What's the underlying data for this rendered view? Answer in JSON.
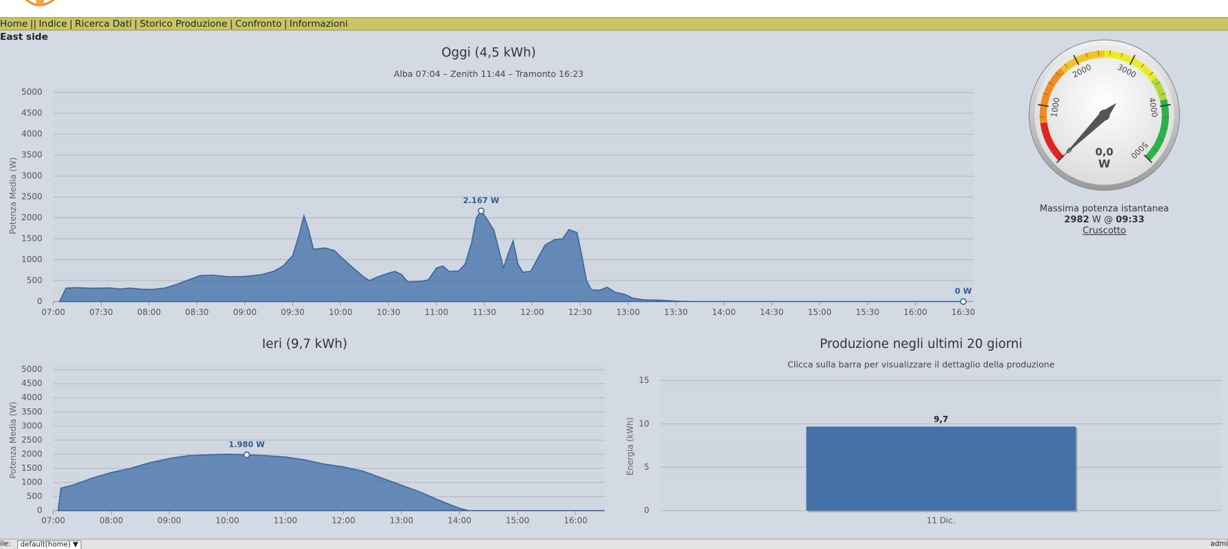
{
  "nav": [
    "Home",
    "Indice",
    "Ricerca Dati",
    "Storico Produzione",
    "Confronto",
    "Informazioni"
  ],
  "section_label": "East side",
  "chart_data": [
    {
      "type": "area",
      "title": "Oggi (4,5 kWh)",
      "subtitle": "Alba 07:04 – Zenith 11:44 – Tramonto 16:23",
      "ylabel": "Potenza Media (W)",
      "color": "#4a76ad",
      "x": [
        "07:04",
        "07:08",
        "07:15",
        "07:25",
        "07:35",
        "07:42",
        "07:48",
        "07:55",
        "08:02",
        "08:10",
        "08:18",
        "08:25",
        "08:32",
        "08:40",
        "08:50",
        "09:00",
        "09:10",
        "09:18",
        "09:24",
        "09:30",
        "09:34",
        "09:37",
        "09:40",
        "09:43",
        "09:50",
        "09:56",
        "10:02",
        "10:08",
        "10:14",
        "10:18",
        "10:24",
        "10:30",
        "10:34",
        "10:38",
        "10:42",
        "10:50",
        "10:55",
        "11:00",
        "11:04",
        "11:08",
        "11:14",
        "11:18",
        "11:22",
        "11:25",
        "11:28",
        "11:32",
        "11:36",
        "11:40",
        "11:42",
        "11:45",
        "11:48",
        "11:51",
        "11:54",
        "11:59",
        "12:03",
        "12:08",
        "12:14",
        "12:19",
        "12:23",
        "12:28",
        "12:31",
        "12:34",
        "12:37",
        "12:42",
        "12:47",
        "12:52",
        "12:58",
        "13:03",
        "13:10",
        "13:20",
        "13:30",
        "13:40",
        "16:30"
      ],
      "values": [
        0,
        320,
        330,
        315,
        325,
        300,
        320,
        295,
        290,
        320,
        420,
        520,
        620,
        630,
        590,
        600,
        640,
        720,
        850,
        1100,
        1600,
        2050,
        1700,
        1250,
        1280,
        1220,
        1000,
        800,
        600,
        500,
        600,
        680,
        720,
        650,
        470,
        480,
        520,
        800,
        850,
        720,
        730,
        900,
        1400,
        2000,
        2167,
        1950,
        1700,
        1100,
        800,
        1150,
        1450,
        900,
        700,
        720,
        1000,
        1350,
        1480,
        1500,
        1720,
        1650,
        1100,
        500,
        280,
        270,
        340,
        220,
        170,
        80,
        40,
        30,
        10,
        0,
        0
      ],
      "xlim": [
        "07:00",
        "16:30"
      ],
      "xticks": [
        "07:00",
        "07:30",
        "08:00",
        "08:30",
        "09:00",
        "09:30",
        "10:00",
        "10:30",
        "11:00",
        "11:30",
        "12:00",
        "12:30",
        "13:00",
        "13:30",
        "14:00",
        "14:30",
        "15:00",
        "15:30",
        "16:00",
        "16:30"
      ],
      "ylim": [
        0,
        5000
      ],
      "yticks": [
        0,
        500,
        1000,
        1500,
        2000,
        2500,
        3000,
        3500,
        4000,
        4500,
        5000
      ],
      "grid": true,
      "annotations": [
        {
          "x": "11:28",
          "value": 2167,
          "label": "2.167 W"
        },
        {
          "x": "16:30",
          "value": 0,
          "label": "0 W"
        }
      ]
    },
    {
      "type": "area",
      "title": "Ieri (9,7 kWh)",
      "ylabel": "Potenza Media (W)",
      "color": "#4a76ad",
      "x": [
        "07:05",
        "07:08",
        "07:20",
        "07:40",
        "08:00",
        "08:20",
        "08:40",
        "09:00",
        "09:20",
        "09:40",
        "10:00",
        "10:20",
        "10:40",
        "11:00",
        "11:20",
        "11:40",
        "12:00",
        "12:20",
        "12:40",
        "13:00",
        "13:20",
        "13:40",
        "14:00",
        "14:10",
        "16:30"
      ],
      "values": [
        0,
        800,
        900,
        1150,
        1350,
        1500,
        1700,
        1850,
        1950,
        1980,
        2000,
        1980,
        1950,
        1900,
        1800,
        1650,
        1550,
        1400,
        1150,
        900,
        650,
        350,
        80,
        0,
        0
      ],
      "xlim": [
        "07:00",
        "16:30"
      ],
      "xticks": [
        "07:00",
        "08:00",
        "09:00",
        "10:00",
        "11:00",
        "12:00",
        "13:00",
        "14:00",
        "15:00",
        "16:00"
      ],
      "ylim": [
        0,
        5000
      ],
      "yticks": [
        0,
        500,
        1000,
        1500,
        2000,
        2500,
        3000,
        3500,
        4000,
        4500,
        5000
      ],
      "grid": true,
      "annotations": [
        {
          "x": "10:20",
          "value": 1980,
          "label": "1.980 W"
        }
      ]
    },
    {
      "type": "bar",
      "title": "Produzione negli ultimi 20 giorni",
      "subtitle": "Clicca sulla barra per visualizzare il dettaglio della produzione",
      "ylabel": "Energia (kWh)",
      "color": "#4472a8",
      "categories": [
        "11 Dic."
      ],
      "values": [
        9.7
      ],
      "value_labels": [
        "9,7"
      ],
      "ylim": [
        0,
        15
      ],
      "yticks": [
        0,
        5,
        10,
        15
      ],
      "grid": true
    },
    {
      "type": "gauge",
      "value": 0,
      "value_label": "0,0",
      "unit": "W",
      "ylim": [
        0,
        5000
      ],
      "yticks": [
        0,
        1000,
        2000,
        3000,
        4000,
        5000
      ]
    }
  ],
  "max_power": {
    "label": "Massima potenza istantanea",
    "value": "2982",
    "unit": "W @",
    "time": "09:33",
    "link": "Cruscotto"
  },
  "footer": {
    "label": "ile:",
    "select": "default(home) ▼",
    "user": "admi"
  }
}
